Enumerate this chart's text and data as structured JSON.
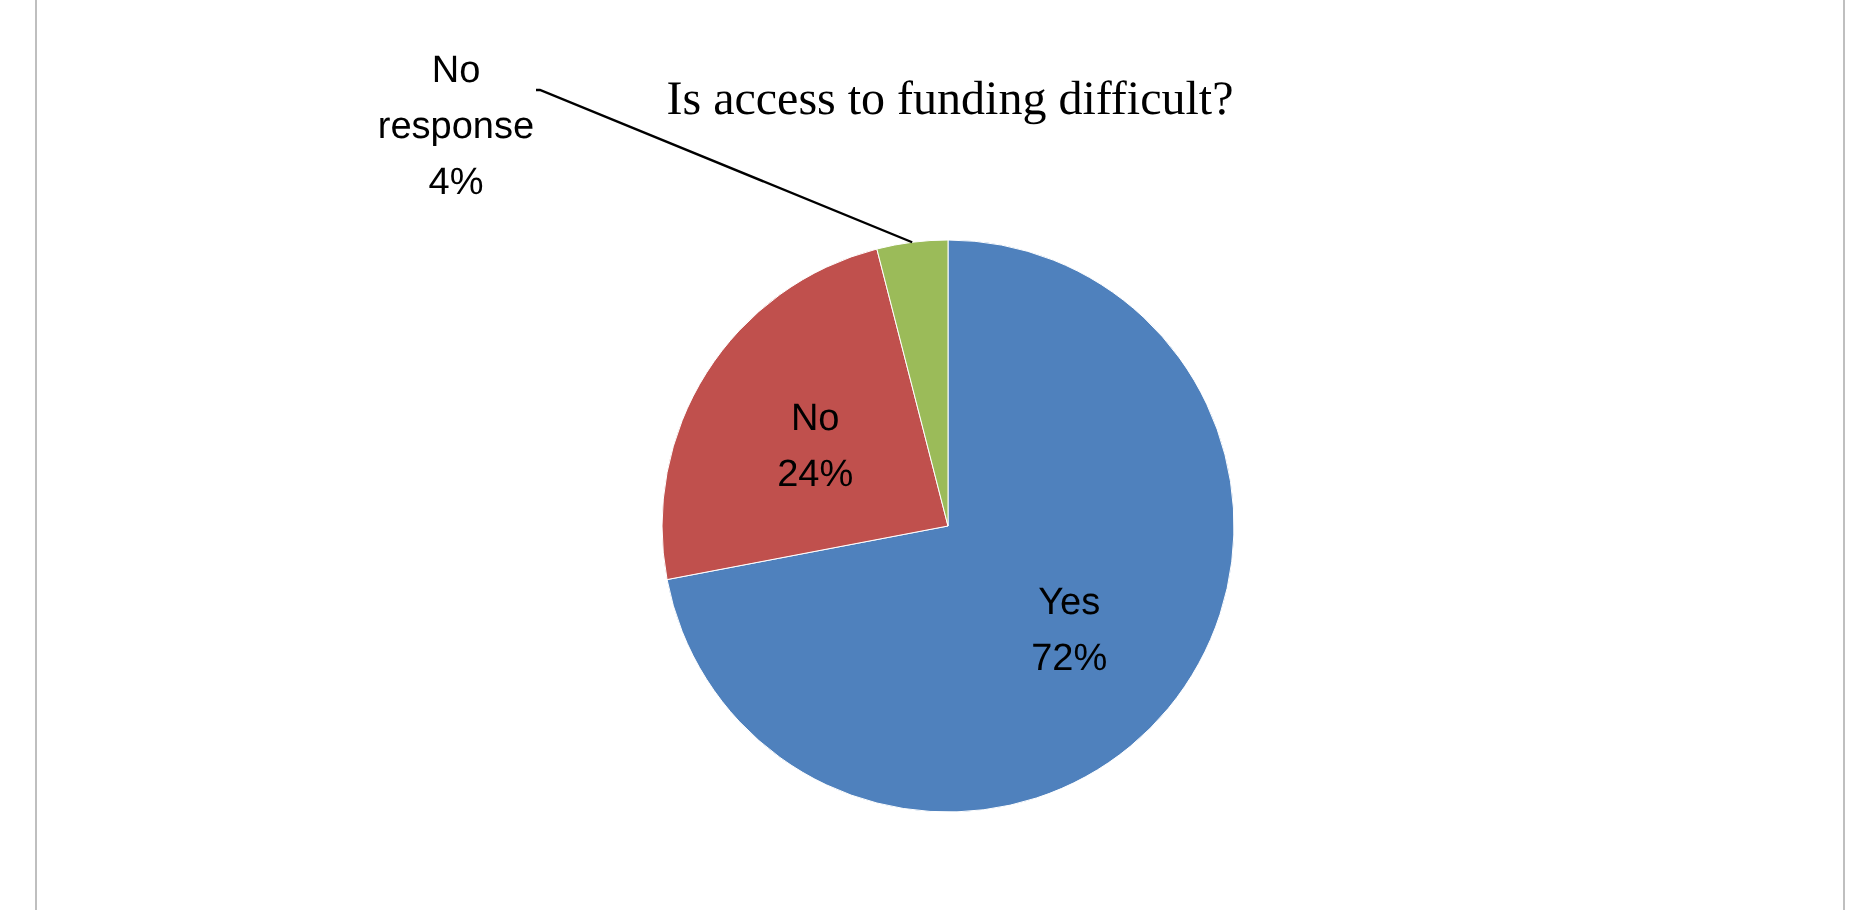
{
  "chart_data": {
    "type": "pie",
    "title": "Is access to funding difficult?",
    "categories": [
      "Yes",
      "No",
      "No response"
    ],
    "values": [
      72,
      24,
      4
    ],
    "colors": [
      "#4f81bd",
      "#c0504d",
      "#9bbb59"
    ],
    "value_labels": [
      "72%",
      "24%",
      "4%"
    ]
  }
}
